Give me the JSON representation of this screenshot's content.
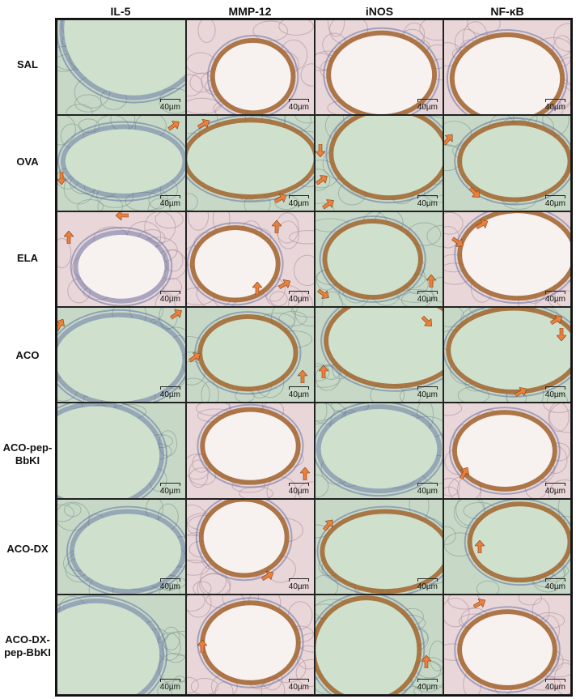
{
  "columns": [
    "IL-5",
    "MMP-12",
    "iNOS",
    "NF-κB"
  ],
  "rows": [
    {
      "label_lines": [
        "SAL"
      ]
    },
    {
      "label_lines": [
        "OVA"
      ]
    },
    {
      "label_lines": [
        "ELA"
      ]
    },
    {
      "label_lines": [
        "ACO"
      ]
    },
    {
      "label_lines": [
        "ACO-pep-",
        "BbKI"
      ]
    },
    {
      "label_lines": [
        "ACO-DX"
      ]
    },
    {
      "label_lines": [
        "ACO-DX-",
        "pep-BbKI"
      ]
    }
  ],
  "scale_label": "40µm",
  "colors": {
    "arrow": "#ec7f3a",
    "tissue_pink": "#e9d6d8",
    "tissue_green": "#c7d9c6",
    "stain_brown": "#a2652f",
    "nuclei_blue": "#5a6aa2"
  }
}
